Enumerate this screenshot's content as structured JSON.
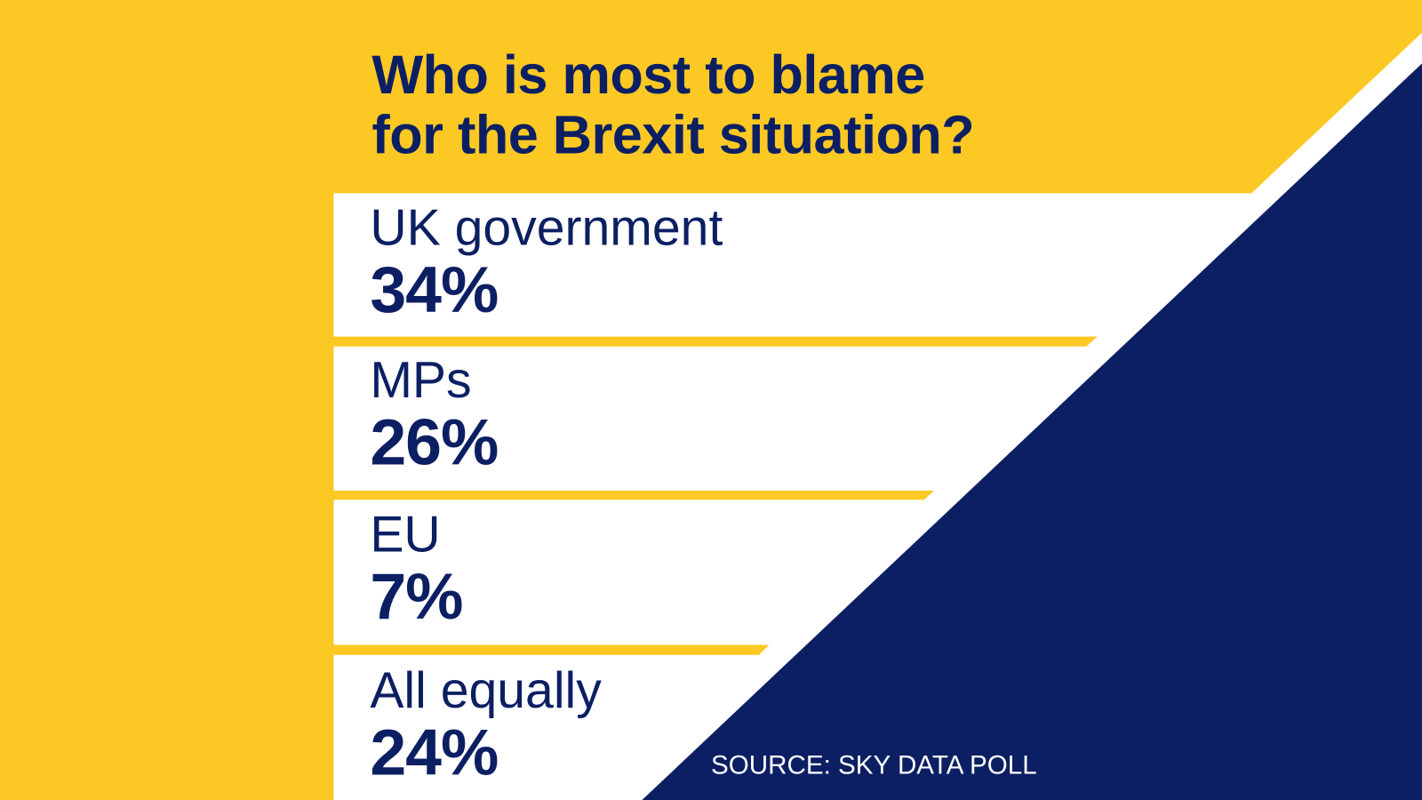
{
  "title_line1": "Who is most to blame",
  "title_line2": "for the Brexit situation?",
  "colors": {
    "yellow": "#fcc824",
    "navy": "#0c1f63",
    "white": "#ffffff"
  },
  "source": "SOURCE: SKY DATA POLL",
  "chart_data": {
    "type": "table",
    "title": "Who is most to blame for the Brexit situation?",
    "categories": [
      "UK government",
      "MPs",
      "EU",
      "All equally"
    ],
    "values": [
      34,
      26,
      7,
      24
    ],
    "value_labels": [
      "34%",
      "26%",
      "7%",
      "24%"
    ],
    "unit": "%",
    "source": "SOURCE: SKY DATA POLL"
  }
}
